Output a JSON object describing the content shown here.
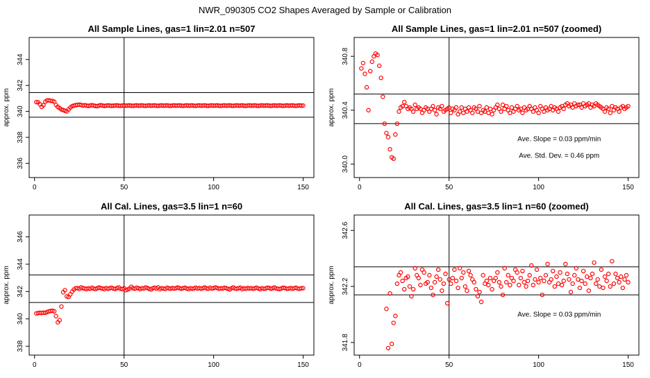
{
  "page": {
    "title": "NWR_090305  CO2 Shapes Averaged by Sample or Calibration",
    "marker_color": "#ff0000"
  },
  "chart_data": [
    {
      "type": "scatter",
      "title": "All Sample Lines, gas=1 lin=2.01 n=507",
      "ylabel": "approx. ppm",
      "xlabel": "",
      "xlim": [
        -3,
        156
      ],
      "ylim": [
        334.9,
        345.7
      ],
      "xticks": [
        0,
        50,
        100,
        150
      ],
      "yticks": [
        336,
        338,
        340,
        342,
        344
      ],
      "vline": 50,
      "hlines": [
        341.45,
        339.55
      ],
      "grid": false,
      "annotations": [],
      "x_start": 1,
      "y": [
        340.72,
        340.7,
        340.55,
        340.35,
        340.48,
        340.75,
        340.85,
        340.85,
        340.82,
        340.8,
        340.75,
        340.5,
        340.35,
        340.25,
        340.15,
        340.1,
        340.05,
        340.0,
        340.15,
        340.3,
        340.4,
        340.45,
        340.48,
        340.5,
        340.52,
        340.5,
        340.45,
        340.48,
        340.45,
        340.42,
        340.45,
        340.48,
        340.45,
        340.42,
        340.4,
        340.45,
        340.48,
        340.45,
        340.42,
        340.44,
        340.46,
        340.45,
        340.43,
        340.44,
        340.45,
        340.46,
        340.44,
        340.43,
        340.45,
        340.46,
        340.44,
        340.45,
        340.46,
        340.44,
        340.43,
        340.45,
        340.46,
        340.44,
        340.45,
        340.46,
        340.44,
        340.43,
        340.45,
        340.46,
        340.44,
        340.45,
        340.46,
        340.44,
        340.43,
        340.45,
        340.46,
        340.44,
        340.45,
        340.46,
        340.44,
        340.43,
        340.45,
        340.46,
        340.44,
        340.45,
        340.46,
        340.44,
        340.43,
        340.45,
        340.46,
        340.44,
        340.45,
        340.46,
        340.44,
        340.43,
        340.45,
        340.46,
        340.44,
        340.45,
        340.46,
        340.44,
        340.43,
        340.45,
        340.46,
        340.44,
        340.45,
        340.46,
        340.44,
        340.43,
        340.45,
        340.46,
        340.44,
        340.45,
        340.46,
        340.44,
        340.43,
        340.45,
        340.46,
        340.44,
        340.45,
        340.46,
        340.44,
        340.43,
        340.45,
        340.46,
        340.44,
        340.45,
        340.46,
        340.44,
        340.43,
        340.45,
        340.46,
        340.44,
        340.45,
        340.46,
        340.44,
        340.43,
        340.45,
        340.46,
        340.44,
        340.45,
        340.46,
        340.44,
        340.43,
        340.45,
        340.46,
        340.44,
        340.45,
        340.46,
        340.44,
        340.43,
        340.45,
        340.46,
        340.44,
        340.45
      ]
    },
    {
      "type": "scatter",
      "title": "All Sample Lines, gas=1 lin=2.01 n=507 (zoomed)",
      "ylabel": "approx. ppm",
      "xlabel": "",
      "xlim": [
        -3,
        156
      ],
      "ylim": [
        339.9,
        340.94
      ],
      "xticks": [
        0,
        50,
        100,
        150
      ],
      "yticks": [
        340.0,
        340.4,
        340.8
      ],
      "ytick_labels": [
        "340.0",
        "340.4",
        "340.8"
      ],
      "vline": 50,
      "hlines": [
        340.52,
        340.3
      ],
      "grid": false,
      "annotations": [
        "Ave. Slope =  0.03  ppm/min",
        "Ave. Std. Dev. =  0.46  ppm"
      ],
      "x_start": 1,
      "y": [
        340.71,
        340.75,
        340.67,
        340.57,
        340.4,
        340.69,
        340.76,
        340.8,
        340.82,
        340.81,
        340.73,
        340.64,
        340.5,
        340.3,
        340.23,
        340.2,
        340.11,
        340.05,
        340.04,
        340.22,
        340.3,
        340.39,
        340.42,
        340.43,
        340.46,
        340.43,
        340.41,
        340.42,
        340.41,
        340.39,
        340.44,
        340.41,
        340.42,
        340.41,
        340.38,
        340.4,
        340.42,
        340.41,
        340.39,
        340.41,
        340.43,
        340.4,
        340.37,
        340.42,
        340.41,
        340.43,
        340.39,
        340.4,
        340.41,
        340.42,
        340.38,
        340.41,
        340.4,
        340.42,
        340.37,
        340.39,
        340.42,
        340.38,
        340.41,
        340.39,
        340.42,
        340.4,
        340.38,
        340.42,
        340.41,
        340.39,
        340.43,
        340.38,
        340.4,
        340.39,
        340.42,
        340.38,
        340.41,
        340.37,
        340.4,
        340.42,
        340.44,
        340.41,
        340.39,
        340.44,
        340.41,
        340.43,
        340.4,
        340.38,
        340.42,
        340.39,
        340.41,
        340.43,
        340.4,
        340.41,
        340.38,
        340.42,
        340.4,
        340.41,
        340.43,
        340.41,
        340.39,
        340.42,
        340.4,
        340.38,
        340.43,
        340.41,
        340.39,
        340.42,
        340.4,
        340.41,
        340.43,
        340.4,
        340.42,
        340.41,
        340.39,
        340.42,
        340.43,
        340.41,
        340.44,
        340.45,
        340.43,
        340.44,
        340.42,
        340.45,
        340.43,
        340.44,
        340.44,
        340.42,
        340.45,
        340.43,
        340.44,
        340.45,
        340.42,
        340.44,
        340.43,
        340.45,
        340.44,
        340.43,
        340.42,
        340.41,
        340.39,
        340.42,
        340.41,
        340.38,
        340.43,
        340.4,
        340.42,
        340.41,
        340.39,
        340.42,
        340.43,
        340.41,
        340.42,
        340.43
      ]
    },
    {
      "type": "scatter",
      "title": "All Cal. Lines, gas=3.5 lin=1 n=60",
      "ylabel": "approx. ppm",
      "xlabel": "",
      "xlim": [
        -3,
        156
      ],
      "ylim": [
        337.35,
        347.6
      ],
      "xticks": [
        0,
        50,
        100,
        150
      ],
      "yticks": [
        338,
        340,
        342,
        344,
        346
      ],
      "ytick_labels": [
        "338",
        "340",
        "342",
        "344",
        "346"
      ],
      "vline": 50,
      "hlines": [
        343.22,
        341.2
      ],
      "grid": false,
      "annotations": [],
      "x_start": 1,
      "y": [
        340.4,
        340.42,
        340.45,
        340.43,
        340.46,
        340.44,
        340.5,
        340.55,
        340.58,
        340.6,
        340.55,
        340.2,
        339.75,
        339.9,
        340.9,
        341.95,
        342.1,
        341.65,
        341.6,
        341.8,
        342.0,
        342.15,
        342.25,
        342.25,
        342.2,
        342.3,
        342.25,
        342.22,
        342.18,
        342.24,
        342.2,
        342.28,
        342.22,
        342.18,
        342.24,
        342.3,
        342.25,
        342.22,
        342.18,
        342.26,
        342.2,
        342.24,
        342.28,
        342.22,
        342.19,
        342.25,
        342.3,
        342.2,
        342.18,
        342.24,
        342.1,
        342.15,
        342.22,
        342.35,
        342.25,
        342.2,
        342.28,
        342.24,
        342.18,
        342.25,
        342.22,
        342.3,
        342.26,
        342.2,
        342.15,
        342.24,
        342.28,
        342.22,
        342.3,
        342.18,
        342.25,
        342.22,
        342.19,
        342.28,
        342.24,
        342.2,
        342.26,
        342.22,
        342.25,
        342.3,
        342.24,
        342.2,
        342.25,
        342.28,
        342.22,
        342.18,
        342.25,
        342.2,
        342.23,
        342.28,
        342.22,
        342.26,
        342.2,
        342.25,
        342.3,
        342.24,
        342.2,
        342.28,
        342.22,
        342.25,
        342.3,
        342.26,
        342.2,
        342.24,
        342.22,
        342.28,
        342.25,
        342.2,
        342.15,
        342.24,
        342.3,
        342.22,
        342.2,
        342.25,
        342.28,
        342.18,
        342.24,
        342.2,
        342.26,
        342.22,
        342.25,
        342.2,
        342.24,
        342.28,
        342.22,
        342.18,
        342.25,
        342.2,
        342.22,
        342.28,
        342.26,
        342.2,
        342.25,
        342.3,
        342.22,
        342.2,
        342.18,
        342.24,
        342.28,
        342.25,
        342.2,
        342.22,
        342.26,
        342.2,
        342.25,
        342.28,
        342.22,
        342.2,
        342.24,
        342.25
      ]
    },
    {
      "type": "scatter",
      "title": "All Cal. Lines, gas=3.5 lin=1 n=60 (zoomed)",
      "ylabel": "approx. ppm",
      "xlabel": "",
      "xlim": [
        -3,
        156
      ],
      "ylim": [
        341.71,
        342.71
      ],
      "xticks": [
        0,
        50,
        100,
        150
      ],
      "yticks": [
        341.8,
        342.2,
        342.6
      ],
      "ytick_labels": [
        "341.8",
        "342.2",
        "342.6"
      ],
      "vline": 50,
      "hlines": [
        342.34,
        342.14
      ],
      "grid": false,
      "annotations": [
        "Ave. Slope =  0.03  ppm/min"
      ],
      "x_start": 15,
      "y": [
        342.04,
        341.76,
        342.15,
        341.79,
        341.94,
        341.99,
        342.22,
        342.28,
        342.3,
        342.24,
        342.18,
        342.26,
        342.27,
        342.2,
        342.13,
        342.18,
        342.33,
        342.28,
        342.26,
        342.21,
        342.32,
        342.3,
        342.22,
        342.23,
        342.28,
        342.19,
        342.14,
        342.23,
        342.27,
        342.32,
        342.25,
        342.17,
        342.22,
        342.29,
        342.08,
        342.25,
        342.22,
        342.26,
        342.32,
        342.24,
        342.19,
        342.33,
        342.26,
        342.3,
        342.2,
        342.17,
        342.31,
        342.28,
        342.25,
        342.23,
        342.18,
        342.13,
        342.16,
        342.09,
        342.28,
        342.22,
        342.24,
        342.21,
        342.26,
        342.18,
        342.24,
        342.26,
        342.3,
        342.23,
        342.2,
        342.14,
        342.33,
        342.23,
        342.28,
        342.21,
        342.26,
        342.24,
        342.32,
        342.3,
        342.21,
        342.26,
        342.31,
        342.23,
        342.2,
        342.24,
        342.28,
        342.35,
        342.21,
        342.25,
        342.32,
        342.23,
        342.26,
        342.14,
        342.24,
        342.28,
        342.36,
        342.23,
        342.25,
        342.31,
        342.2,
        342.27,
        342.22,
        342.3,
        342.21,
        342.24,
        342.36,
        342.29,
        342.25,
        342.16,
        342.22,
        342.28,
        342.33,
        342.25,
        342.19,
        342.24,
        342.31,
        342.22,
        342.27,
        342.17,
        342.26,
        342.29,
        342.37,
        342.22,
        342.25,
        342.2,
        342.32,
        342.19,
        342.27,
        342.24,
        342.29,
        342.2,
        342.38,
        342.22,
        342.29,
        342.26,
        342.23,
        342.27,
        342.19,
        342.25,
        342.28,
        342.23
      ]
    }
  ]
}
